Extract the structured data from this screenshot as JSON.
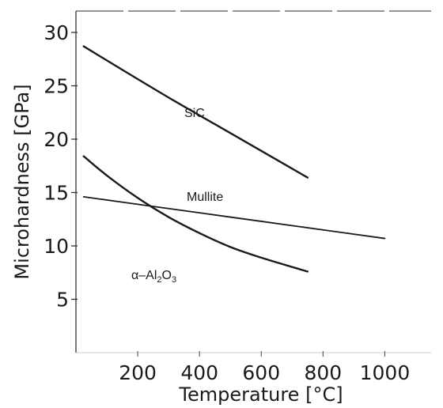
{
  "chart_data": {
    "type": "line",
    "title": "",
    "xlabel": "Temperature [°C]",
    "ylabel": "Microhardness [GPa]",
    "xlim": [
      0,
      1150
    ],
    "ylim": [
      0,
      32
    ],
    "xticks": [
      200,
      400,
      600,
      800,
      1000
    ],
    "yticks": [
      5,
      10,
      15,
      20,
      25,
      30
    ],
    "grid": false,
    "legend": "none",
    "series": [
      {
        "name": "SiC",
        "color": "#1a1a1a",
        "x": [
          25,
          150,
          300,
          450,
          600,
          750
        ],
        "y": [
          28.7,
          26.5,
          23.9,
          21.4,
          18.9,
          16.4
        ]
      },
      {
        "name": "Mullite",
        "color": "#1a1a1a",
        "x": [
          25,
          200,
          400,
          600,
          800,
          1000
        ],
        "y": [
          14.6,
          13.9,
          13.1,
          12.3,
          11.5,
          10.7
        ]
      },
      {
        "name": "α-Al2O3",
        "label_parts": [
          "α–Al",
          "2",
          "O",
          "3"
        ],
        "color": "#1a1a1a",
        "x": [
          25,
          100,
          200,
          300,
          400,
          500,
          600,
          750
        ],
        "y": [
          18.4,
          16.6,
          14.5,
          12.7,
          11.2,
          9.9,
          8.9,
          7.6
        ]
      }
    ]
  }
}
